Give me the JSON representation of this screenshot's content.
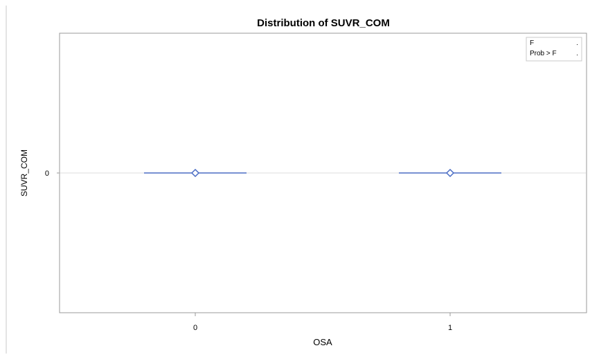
{
  "chart_data": {
    "type": "box",
    "title": "Distribution of SUVR_COM",
    "xlabel": "OSA",
    "ylabel": "SUVR_COM",
    "categories": [
      "0",
      "1"
    ],
    "y_ticks": [
      "0"
    ],
    "series": [
      {
        "values": [
          0,
          0
        ],
        "means": [
          0,
          0
        ]
      }
    ],
    "reference_line_y": 0,
    "inset_table": {
      "rows": [
        {
          "label": "F",
          "value": "."
        },
        {
          "label": "Prob > F",
          "value": "."
        }
      ],
      "placement": "top-right"
    },
    "colors": {
      "series": "#4a6cc4",
      "frame": "#9a9a9a",
      "reference": "#dcdcdc",
      "text": "#000000"
    }
  }
}
